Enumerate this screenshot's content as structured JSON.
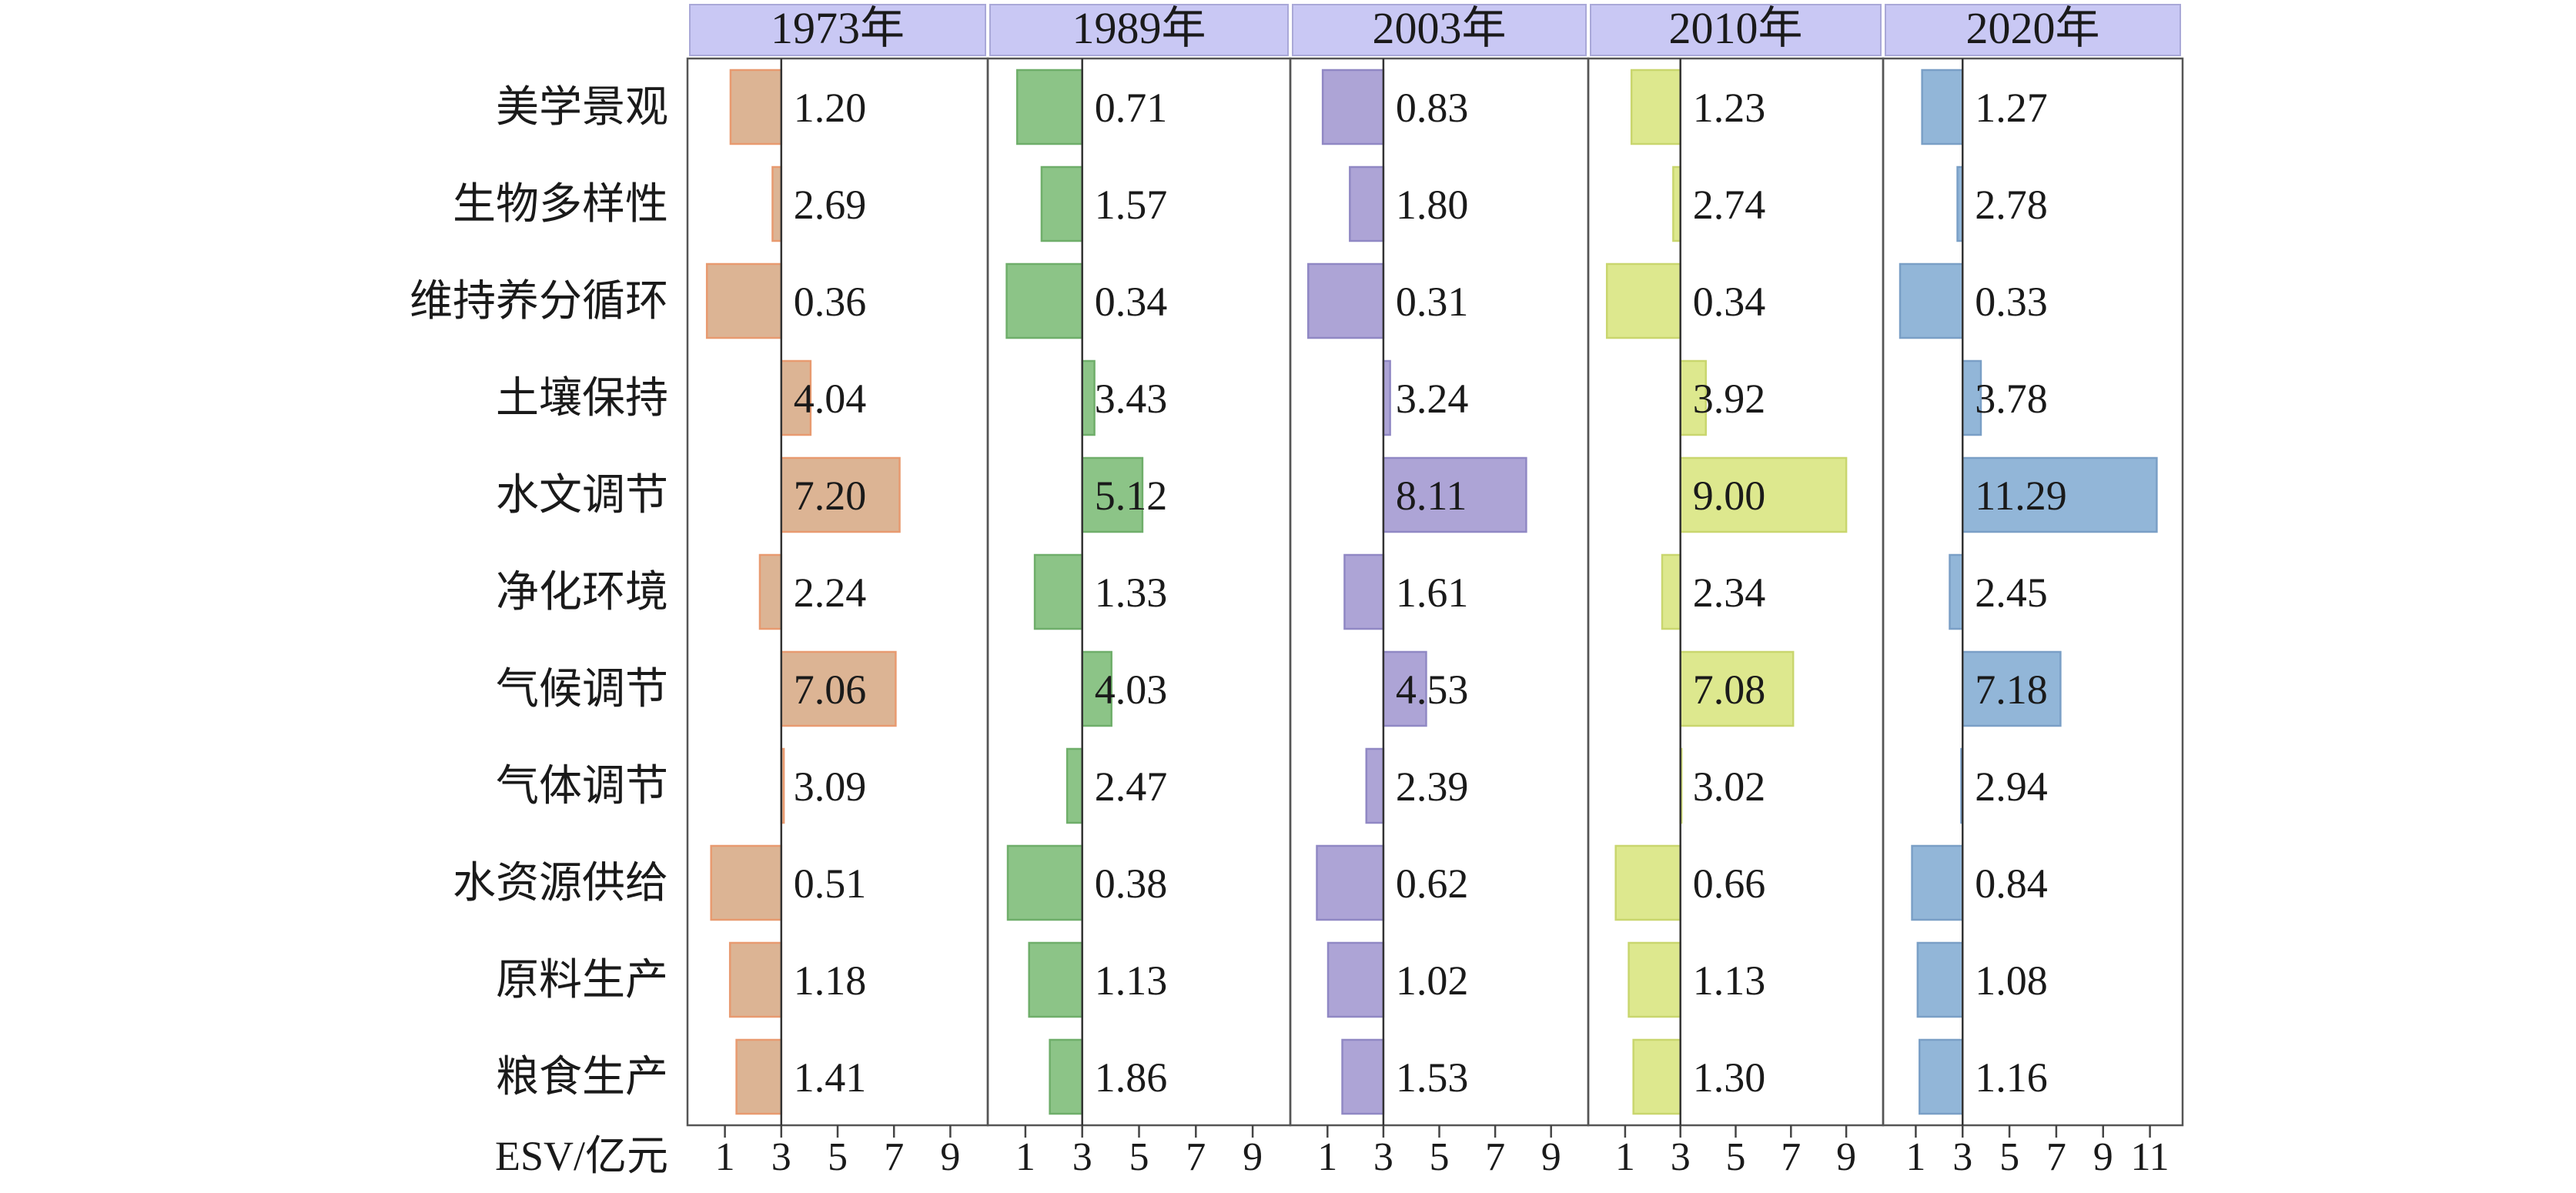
{
  "chart_data": {
    "type": "bar",
    "xlabel": "ESV/亿元",
    "baseline": 3,
    "categories": [
      "美学景观",
      "生物多样性",
      "维持养分循环",
      "土壤保持",
      "水文调节",
      "净化环境",
      "气候调节",
      "气体调节",
      "水资源供给",
      "原料生产",
      "粮食生产"
    ],
    "panels": [
      {
        "title": "1973年",
        "color": "#dcb494",
        "edge": "#e89a70",
        "xlim": [
          0,
          10
        ],
        "ticks": [
          "1",
          "3",
          "5",
          "7",
          "9"
        ],
        "tick_values": [
          1,
          3,
          5,
          7,
          9
        ],
        "values": [
          1.2,
          2.69,
          0.36,
          4.04,
          7.2,
          2.24,
          7.06,
          3.09,
          0.51,
          1.18,
          1.41
        ],
        "labels": [
          "1.20",
          "2.69",
          "0.36",
          "4.04",
          "7.20",
          "2.24",
          "7.06",
          "3.09",
          "0.51",
          "1.18",
          "1.41"
        ]
      },
      {
        "title": "1989年",
        "color": "#8cc487",
        "edge": "#6fae6a",
        "xlim": [
          0,
          10
        ],
        "ticks": [
          "1",
          "3",
          "5",
          "7",
          "9"
        ],
        "tick_values": [
          1,
          3,
          5,
          7,
          9
        ],
        "values": [
          0.71,
          1.57,
          0.34,
          3.43,
          5.12,
          1.33,
          4.03,
          2.47,
          0.38,
          1.13,
          1.86
        ],
        "labels": [
          "0.71",
          "1.57",
          "0.34",
          "3.43",
          "5.12",
          "1.33",
          "4.03",
          "2.47",
          "0.38",
          "1.13",
          "1.86"
        ]
      },
      {
        "title": "2003年",
        "color": "#ada4d6",
        "edge": "#9088c4",
        "xlim": [
          0,
          10
        ],
        "ticks": [
          "1",
          "3",
          "5",
          "7",
          "9"
        ],
        "tick_values": [
          1,
          3,
          5,
          7,
          9
        ],
        "values": [
          0.83,
          1.8,
          0.31,
          3.24,
          8.11,
          1.61,
          4.53,
          2.39,
          0.62,
          1.02,
          1.53
        ],
        "labels": [
          "0.83",
          "1.80",
          "0.31",
          "3.24",
          "8.11",
          "1.61",
          "4.53",
          "2.39",
          "0.62",
          "1.02",
          "1.53"
        ]
      },
      {
        "title": "2010年",
        "color": "#dde88e",
        "edge": "#c9d66e",
        "xlim": [
          0,
          10
        ],
        "ticks": [
          "1",
          "3",
          "5",
          "7",
          "9"
        ],
        "tick_values": [
          1,
          3,
          5,
          7,
          9
        ],
        "values": [
          1.23,
          2.74,
          0.34,
          3.92,
          9.0,
          2.34,
          7.08,
          3.02,
          0.66,
          1.13,
          1.3
        ],
        "labels": [
          "1.23",
          "2.74",
          "0.34",
          "3.92",
          "9.00",
          "2.34",
          "7.08",
          "3.02",
          "0.66",
          "1.13",
          "1.30"
        ]
      },
      {
        "title": "2020年",
        "color": "#92b6d8",
        "edge": "#7a9fc6",
        "xlim": [
          0,
          12
        ],
        "ticks": [
          "1",
          "3",
          "5",
          "7",
          "9",
          "11"
        ],
        "tick_values": [
          1,
          3,
          5,
          7,
          9,
          11
        ],
        "values": [
          1.27,
          2.78,
          0.33,
          3.78,
          11.29,
          2.45,
          7.18,
          2.94,
          0.84,
          1.08,
          1.16
        ],
        "labels": [
          "1.27",
          "2.78",
          "0.33",
          "3.78",
          "11.29",
          "2.45",
          "7.18",
          "2.94",
          "0.84",
          "1.08",
          "1.16"
        ]
      }
    ],
    "header_color": "#c9c8f4",
    "grid": false
  }
}
